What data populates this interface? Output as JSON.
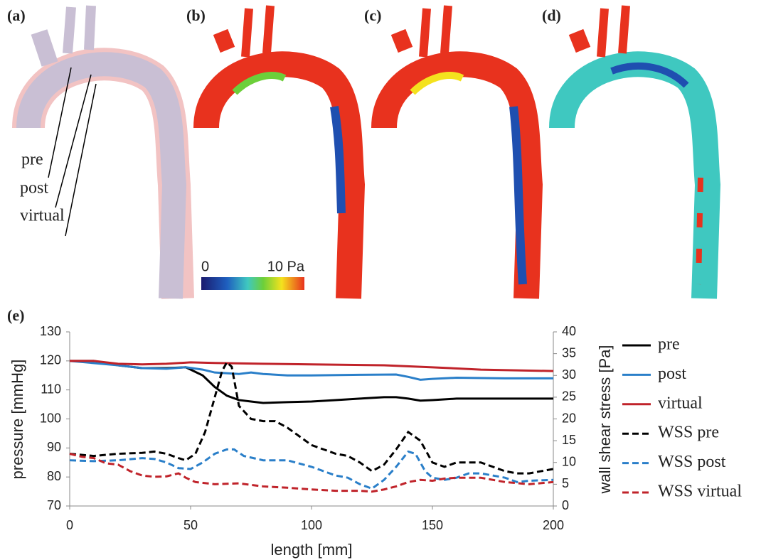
{
  "figure": {
    "panel_labels": [
      "(a)",
      "(b)",
      "(c)",
      "(d)",
      "(e)"
    ],
    "annotations": [
      "pre",
      "post",
      "virtual"
    ],
    "colorbar": {
      "min_label": "0",
      "max_label": "10 Pa"
    }
  },
  "chart_data": {
    "type": "line",
    "x_label": "length [mm]",
    "y_label": "pressure [mmHg]",
    "y2_label": "wall shear stress [Pa]",
    "xlim": [
      0,
      200
    ],
    "xticks": [
      0,
      50,
      100,
      150,
      200
    ],
    "ylim": [
      70,
      130
    ],
    "yticks": [
      70,
      80,
      90,
      100,
      110,
      120,
      130
    ],
    "y2lim": [
      0,
      40
    ],
    "y2ticks": [
      0,
      5,
      10,
      15,
      20,
      25,
      30,
      35,
      40
    ],
    "grid": false,
    "legend": "right",
    "series": [
      {
        "name": "pre",
        "color": "#000000",
        "dash": false,
        "x": [
          0,
          10,
          20,
          30,
          40,
          48,
          55,
          60,
          65,
          70,
          75,
          80,
          90,
          100,
          110,
          120,
          130,
          135,
          140,
          145,
          150,
          160,
          180,
          200
        ],
        "values": [
          120,
          120,
          118.5,
          117.5,
          117.5,
          117.8,
          115,
          111,
          108,
          106.5,
          106,
          105.5,
          105.8,
          106,
          106.5,
          107,
          107.5,
          107.5,
          107,
          106.3,
          106.5,
          107,
          107,
          107
        ]
      },
      {
        "name": "post",
        "color": "#2a7fc9",
        "dash": false,
        "x": [
          0,
          20,
          30,
          40,
          48,
          55,
          60,
          70,
          75,
          80,
          90,
          100,
          120,
          135,
          140,
          145,
          150,
          160,
          180,
          200
        ],
        "values": [
          120,
          118.5,
          117.5,
          117.3,
          117.8,
          117,
          116,
          115.5,
          116,
          115.5,
          115,
          115,
          115.2,
          115.3,
          114.5,
          113.5,
          113.8,
          114.2,
          114,
          114
        ]
      },
      {
        "name": "virtual",
        "color": "#c0232a",
        "dash": false,
        "x": [
          0,
          10,
          20,
          30,
          40,
          50,
          60,
          80,
          100,
          130,
          150,
          170,
          200
        ],
        "values": [
          120,
          120,
          119,
          118.8,
          119,
          119.5,
          119.3,
          119,
          118.8,
          118.5,
          117.8,
          117,
          116.5
        ]
      },
      {
        "name": "WSS pre",
        "color": "#000000",
        "dash": true,
        "axis": "y2",
        "x": [
          0,
          10,
          20,
          30,
          35,
          40,
          45,
          48,
          52,
          56,
          60,
          63,
          65,
          67,
          70,
          75,
          80,
          85,
          90,
          100,
          110,
          115,
          120,
          125,
          130,
          135,
          140,
          145,
          150,
          155,
          160,
          170,
          180,
          185,
          190,
          200
        ],
        "values": [
          12,
          11.5,
          12,
          12.2,
          12.5,
          12,
          11,
          10.5,
          12,
          17,
          25,
          31,
          33,
          32,
          23,
          20,
          19.5,
          19.5,
          18,
          14,
          12,
          11.5,
          10,
          8,
          9.5,
          13,
          17,
          15,
          10,
          9,
          10,
          10,
          8,
          7.5,
          7.5,
          8.5
        ]
      },
      {
        "name": "WSS post",
        "color": "#2a7fc9",
        "dash": true,
        "axis": "y2",
        "x": [
          0,
          10,
          20,
          30,
          35,
          40,
          45,
          50,
          55,
          60,
          65,
          68,
          72,
          80,
          90,
          100,
          110,
          115,
          120,
          125,
          130,
          135,
          140,
          143,
          147,
          150,
          155,
          160,
          165,
          170,
          180,
          185,
          190,
          200
        ],
        "values": [
          10.5,
          10.3,
          10.5,
          11,
          10.8,
          10,
          8.7,
          8.5,
          10,
          12,
          13,
          13,
          11.5,
          10.5,
          10.5,
          9,
          7,
          6.5,
          5,
          4,
          6,
          9,
          12.5,
          12,
          8,
          6.5,
          6,
          6.5,
          7.5,
          7.5,
          6.5,
          5.5,
          5.8,
          6
        ]
      },
      {
        "name": "WSS virtual",
        "color": "#c0232a",
        "dash": true,
        "axis": "y2",
        "x": [
          0,
          5,
          10,
          15,
          20,
          25,
          30,
          35,
          40,
          45,
          48,
          52,
          60,
          70,
          80,
          90,
          100,
          110,
          120,
          125,
          130,
          135,
          140,
          145,
          150,
          155,
          160,
          170,
          180,
          190,
          200
        ],
        "values": [
          12,
          11.3,
          11,
          9.8,
          9.5,
          8,
          7,
          6.7,
          6.8,
          7.5,
          6.5,
          5.5,
          5,
          5.2,
          4.5,
          4.2,
          3.8,
          3.5,
          3.5,
          3.3,
          3.8,
          4.5,
          5.5,
          6,
          5.8,
          6.3,
          6.5,
          6.5,
          5.5,
          5,
          5.5
        ]
      }
    ]
  }
}
